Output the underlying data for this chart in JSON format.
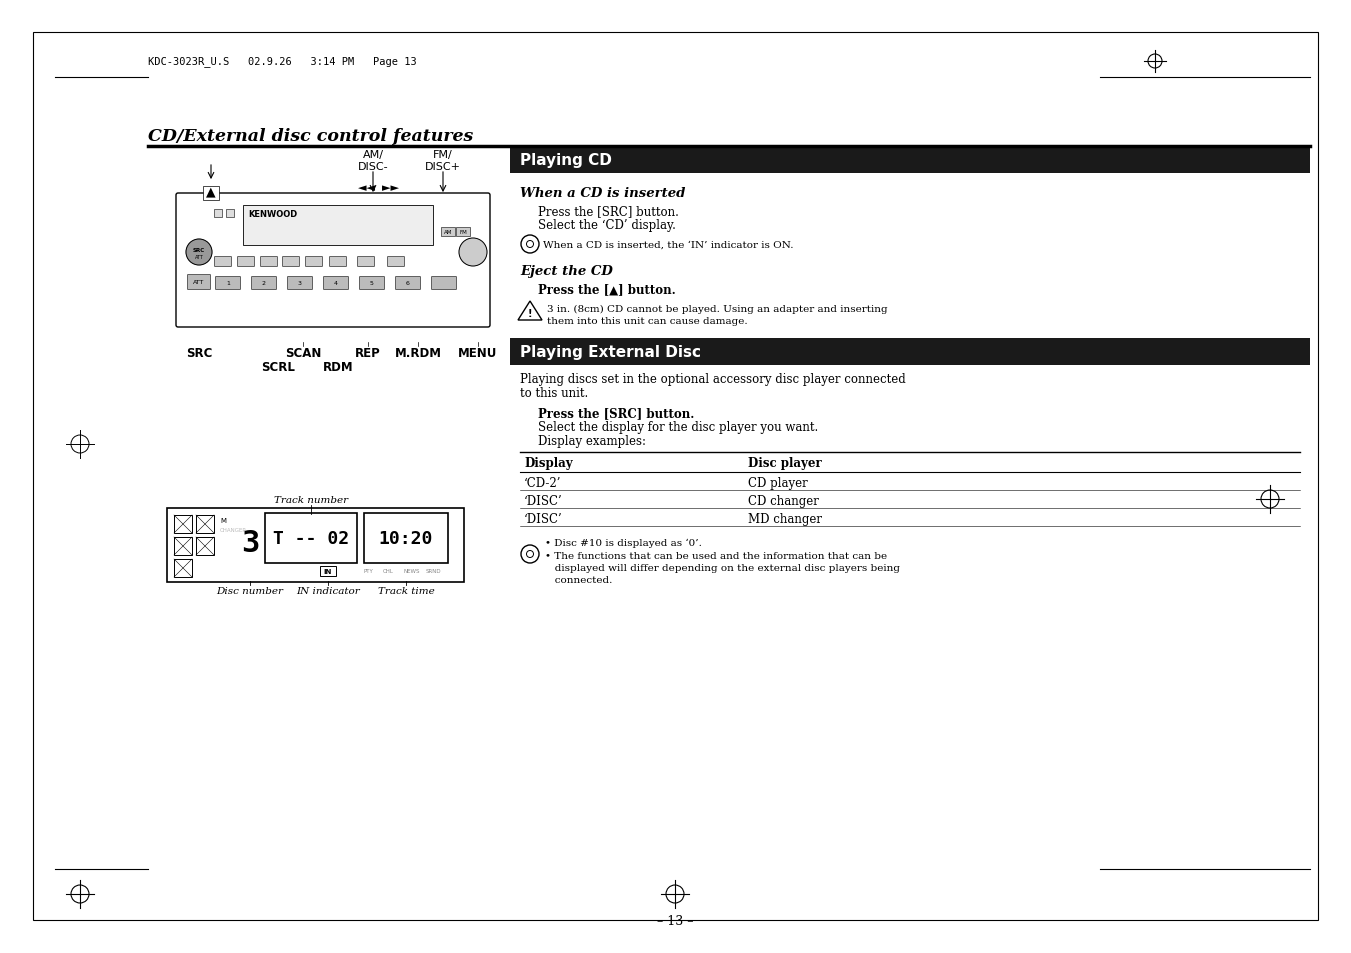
{
  "page_bg": "#ffffff",
  "header_text": "KDC-3023R_U.S   02.9.26   3:14 PM   Page 13",
  "title": "CD/External disc control features",
  "section1_header": "Playing CD",
  "section2_header": "Playing External Disc",
  "subsection1_title": "When a CD is inserted",
  "subsection1_lines": [
    "Press the [SRC] button.",
    "Select the ‘CD’ display."
  ],
  "note1": "When a CD is inserted, the ‘IN’ indicator is ON.",
  "subsection2_title": "Eject the CD",
  "subsection2_line": "Press the [▲] button.",
  "warning1_lines": [
    "3 in. (8cm) CD cannot be played. Using an adapter and inserting",
    "them into this unit can cause damage."
  ],
  "section2_intro_lines": [
    "Playing discs set in the optional accessory disc player connected",
    "to this unit."
  ],
  "section2_body1": "Press the [SRC] button.",
  "section2_body2": "Select the display for the disc player you want.",
  "section2_body3": "Display examples:",
  "table_col1_header": "Display",
  "table_col2_header": "Disc player",
  "table_rows": [
    [
      "‘CD-2’",
      "CD player"
    ],
    [
      "‘DISC’",
      "CD changer"
    ],
    [
      "‘DISC’",
      "MD changer"
    ]
  ],
  "note2_line1": "• Disc #10 is displayed as ‘0’.",
  "note2_line2": "• The functions that can be used and the information that can be",
  "note2_line3": "   displayed will differ depending on the external disc players being",
  "note2_line4": "   connected.",
  "label_am": "AM/",
  "label_disc_minus": "DISC-",
  "label_fm": "FM/",
  "label_disc_plus": "DISC+",
  "label_src": "SRC",
  "label_scan": "SCAN",
  "label_scrl": "SCRL",
  "label_rdm": "RDM",
  "label_rep": "REP",
  "label_mrdm": "M.RDM",
  "label_menu": "MENU",
  "label_track_number": "Track number",
  "label_disc_number": "Disc number",
  "label_in_indicator": "IN indicator",
  "label_track_time": "Track time",
  "page_number": "– 13 –",
  "header_bar_color": "#1a1a1a",
  "header_text_color": "#ffffff"
}
